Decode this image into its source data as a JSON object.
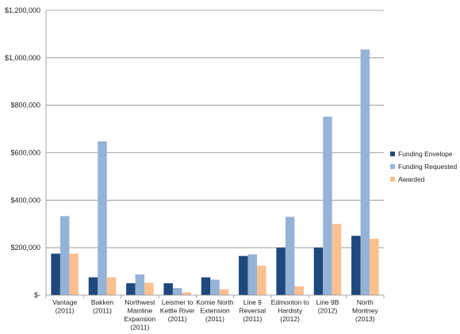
{
  "chart_data": {
    "type": "bar",
    "title": "",
    "xlabel": "",
    "ylabel": "",
    "ylim": [
      0,
      1200000
    ],
    "yticks": [
      0,
      200000,
      400000,
      600000,
      800000,
      1000000,
      1200000
    ],
    "ytick_labels": [
      "$-",
      "$200,000",
      "$400,000",
      "$600,000",
      "$800,000",
      "$1,000,000",
      "$1,200,000"
    ],
    "grid": true,
    "legend_position": "right",
    "categories": [
      [
        "Vantage",
        "(2011)"
      ],
      [
        "Bakken",
        "(2011)"
      ],
      [
        "Northwest",
        "Mainline",
        "Expansion",
        "(2011)"
      ],
      [
        "Leismer to",
        "Kettle River",
        "(2011)"
      ],
      [
        "Komie North",
        "Extension",
        "(2011)"
      ],
      [
        "Line 9",
        "Reversal",
        "(2011)"
      ],
      [
        "Edmonton to",
        "Hardisty",
        "(2012)"
      ],
      [
        "Line 9B",
        "(2012)"
      ],
      [
        "North",
        "Montney",
        "(2013)"
      ]
    ],
    "series": [
      {
        "name": "Funding Envelope",
        "color": "#1f497d",
        "values": [
          175000,
          75000,
          50000,
          50000,
          75000,
          165000,
          200000,
          200000,
          250000
        ]
      },
      {
        "name": "Funding Requested",
        "color": "#95b3d7",
        "values": [
          333000,
          648000,
          87000,
          30000,
          65000,
          172000,
          330000,
          752000,
          1035000
        ]
      },
      {
        "name": "Awarded",
        "color": "#fac090",
        "values": [
          175000,
          75000,
          52000,
          12000,
          25000,
          124000,
          37000,
          300000,
          238000
        ]
      }
    ]
  }
}
